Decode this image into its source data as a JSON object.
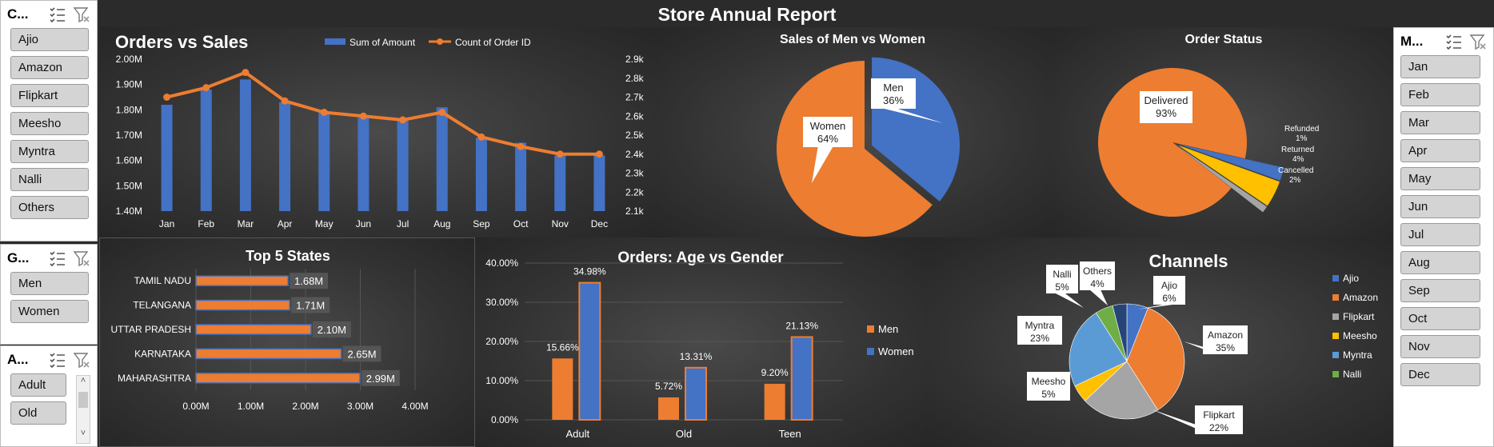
{
  "report_title": "Store Annual Report",
  "slicers": {
    "channel": {
      "title": "C...",
      "items": [
        "Ajio",
        "Amazon",
        "Flipkart",
        "Meesho",
        "Myntra",
        "Nalli",
        "Others"
      ]
    },
    "gender": {
      "title": "G...",
      "items": [
        "Men",
        "Women"
      ]
    },
    "age": {
      "title": "A...",
      "items": [
        "Adult",
        "Old"
      ]
    },
    "month": {
      "title": "M...",
      "items": [
        "Jan",
        "Feb",
        "Mar",
        "Apr",
        "May",
        "Jun",
        "Jul",
        "Aug",
        "Sep",
        "Oct",
        "Nov",
        "Dec"
      ]
    }
  },
  "colors": {
    "orange": "#ED7D31",
    "blue": "#4472C4",
    "gray": "#A5A5A5",
    "yellow": "#FFC000",
    "lightblue": "#5B9BD5",
    "green": "#70AD47"
  },
  "chart_data": [
    {
      "id": "orders_vs_sales",
      "type": "bar",
      "title": "Orders vs Sales",
      "categories": [
        "Jan",
        "Feb",
        "Mar",
        "Apr",
        "May",
        "Jun",
        "Jul",
        "Aug",
        "Sep",
        "Oct",
        "Nov",
        "Dec"
      ],
      "series": [
        {
          "name": "Sum of Amount",
          "type": "bar",
          "axis": "left",
          "values": [
            1.82,
            1.88,
            1.92,
            1.83,
            1.79,
            1.77,
            1.76,
            1.81,
            1.69,
            1.67,
            1.62,
            1.62
          ]
        },
        {
          "name": "Count of Order ID",
          "type": "line",
          "axis": "right",
          "values": [
            2700,
            2750,
            2830,
            2680,
            2620,
            2600,
            2580,
            2620,
            2490,
            2440,
            2400,
            2400
          ]
        }
      ],
      "y_left_ticks": [
        "2.00M",
        "1.90M",
        "1.80M",
        "1.70M",
        "1.60M",
        "1.50M",
        "1.40M"
      ],
      "y_left_range": [
        1.4,
        2.0
      ],
      "y_right_ticks": [
        "2.9k",
        "2.8k",
        "2.7k",
        "2.6k",
        "2.5k",
        "2.4k",
        "2.3k",
        "2.2k",
        "2.1k"
      ],
      "y_right_range": [
        2100,
        2900
      ]
    },
    {
      "id": "men_vs_women",
      "type": "pie",
      "title": "Sales of Men vs Women",
      "slices": [
        {
          "label": "Men",
          "value": 36,
          "pct": "36%"
        },
        {
          "label": "Women",
          "value": 64,
          "pct": "64%"
        }
      ]
    },
    {
      "id": "order_status",
      "type": "pie",
      "title": "Order Status",
      "slices": [
        {
          "label": "Delivered",
          "value": 93,
          "pct": "93%"
        },
        {
          "label": "Refunded",
          "value": 1,
          "pct": "1%"
        },
        {
          "label": "Returned",
          "value": 4,
          "pct": "4%"
        },
        {
          "label": "Cancelled",
          "value": 2,
          "pct": "2%"
        }
      ]
    },
    {
      "id": "top5_states",
      "type": "bar",
      "orientation": "horizontal",
      "title": "Top 5 States",
      "categories": [
        "TAMIL NADU",
        "TELANGANA",
        "UTTAR PRADESH",
        "KARNATAKA",
        "MAHARASHTRA"
      ],
      "values": [
        1.68,
        1.71,
        2.1,
        2.65,
        2.99
      ],
      "labels": [
        "1.68M",
        "1.71M",
        "2.10M",
        "2.65M",
        "2.99M"
      ],
      "x_ticks": [
        "0.00M",
        "1.00M",
        "2.00M",
        "3.00M",
        "4.00M"
      ],
      "xlim": [
        0,
        4
      ]
    },
    {
      "id": "age_vs_gender",
      "type": "bar",
      "title": "Orders: Age vs Gender",
      "categories": [
        "Adult",
        "Old",
        "Teen"
      ],
      "series": [
        {
          "name": "Men",
          "values": [
            15.66,
            5.72,
            9.2
          ],
          "labels": [
            "15.66%",
            "5.72%",
            "9.20%"
          ]
        },
        {
          "name": "Women",
          "values": [
            34.98,
            13.31,
            21.13
          ],
          "labels": [
            "34.98%",
            "13.31%",
            "21.13%"
          ]
        }
      ],
      "y_ticks": [
        "40.00%",
        "30.00%",
        "20.00%",
        "10.00%",
        "0.00%"
      ],
      "ylim": [
        0,
        40
      ]
    },
    {
      "id": "channels",
      "type": "pie",
      "title": "Channels",
      "slices": [
        {
          "label": "Ajio",
          "value": 6,
          "pct": "6%"
        },
        {
          "label": "Amazon",
          "value": 35,
          "pct": "35%"
        },
        {
          "label": "Flipkart",
          "value": 22,
          "pct": "22%"
        },
        {
          "label": "Meesho",
          "value": 5,
          "pct": "5%"
        },
        {
          "label": "Myntra",
          "value": 23,
          "pct": "23%"
        },
        {
          "label": "Nalli",
          "value": 5,
          "pct": "5%"
        },
        {
          "label": "Others",
          "value": 4,
          "pct": "4%"
        }
      ],
      "legend": [
        "Ajio",
        "Amazon",
        "Flipkart",
        "Meesho",
        "Myntra",
        "Nalli"
      ]
    }
  ]
}
